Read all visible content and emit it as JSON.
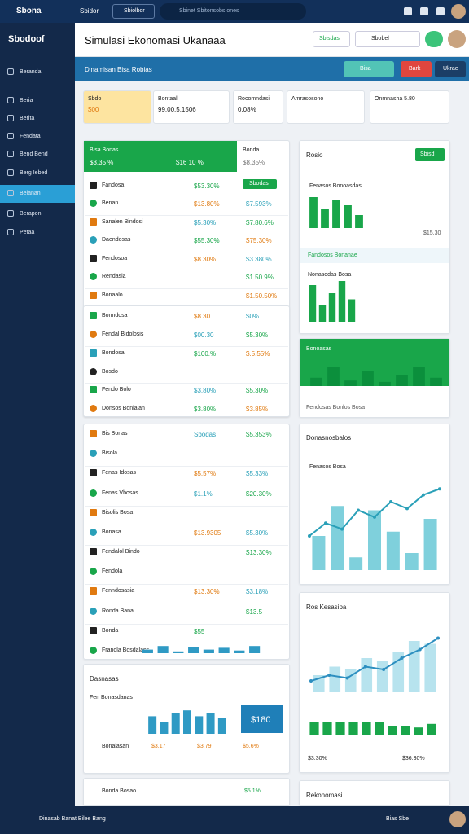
{
  "topbar": {
    "logo": "Sbona",
    "app": "Sbidor",
    "tab": "Sbiolbor",
    "search": "Sbinet Sbitonsobs ones"
  },
  "sidebar": {
    "brand": "Sbodoof",
    "items": [
      "Beranda",
      "Beria",
      "Berita",
      "Fendata",
      "Bend Bend",
      "Berg Iebed",
      "Belanan",
      "Berapon",
      "Petaa"
    ],
    "footer": "Dinasab Banat Bilee Bang"
  },
  "header": {
    "title": "Simulasi Ekonomasi Ukanaaa",
    "buttons": [
      "Sbisdas",
      "Sbobel"
    ]
  },
  "banner": {
    "title": "Dinamisan Bisa Robias",
    "buttons": [
      "Bisa",
      "Bark",
      "Ukrae"
    ]
  },
  "stats": [
    {
      "label": "Sbdo",
      "value": "$00"
    },
    {
      "label": "Bontaal",
      "value": "99.00.5.1506"
    },
    {
      "label": "Rocomndasi",
      "value": "0.08%"
    },
    {
      "label": "Amrasosono"
    },
    {
      "label": "Onmnasha 5.80"
    }
  ],
  "table": {
    "title": "Bisa Bonas",
    "values": [
      "$3.35 %",
      "$16 10 %"
    ],
    "side_title": "Bonda",
    "side_value": "$8.35%",
    "badge": "Sbodas",
    "sections": [
      [
        {
          "name": "Fandosa",
          "a": "$53.30%"
        },
        {
          "name": "Benan",
          "a": "$13.80%",
          "b": "$7.593%"
        },
        {
          "name": "Sanalen Bindosi",
          "a": "$5.30%",
          "b": "$7.80.6%"
        },
        {
          "name": "Daendosas",
          "a": "$55.30%",
          "b": "$75.30%"
        },
        {
          "name": "Fendosoa",
          "a": "$8.30%",
          "b": "$3.380%"
        },
        {
          "name": "Rendasia",
          "b": "$1.50.9%"
        },
        {
          "name": "Bonaalo",
          "b": "$1.50.50%"
        }
      ],
      [
        {
          "name": "Bonndosa",
          "a": "$8.30",
          "b": "$0%"
        },
        {
          "name": "Fendal Bidolosis",
          "a": "$00.30",
          "b": "$5.30%"
        },
        {
          "name": "Bondosa",
          "a": "$100.%",
          "b": "$.5.55%"
        },
        {
          "name": "Bosdo"
        },
        {
          "name": "Fendo Bolo",
          "a": "$3.80%",
          "b": "$5.30%"
        },
        {
          "name": "Donsos Bonlalan",
          "a": "$3.80%",
          "b": "$3.85%"
        }
      ],
      [
        {
          "name": "Bis Bonas",
          "a": "Sbodas",
          "b": "$5.353%"
        },
        {
          "name": "Bisola"
        },
        {
          "name": "Fenas Idosas",
          "a": "$5.57%",
          "b": "$5.33%"
        },
        {
          "name": "Fenas Vbosas",
          "a": "$1.1%",
          "b": "$20.30%"
        },
        {
          "name": "Bisolis Bosa"
        },
        {
          "name": "Bonasa",
          "a": "$13.9305",
          "b": "$5.30%"
        },
        {
          "name": "Fendalol Bindo",
          "b": "$13.30%"
        },
        {
          "name": "Fendola"
        },
        {
          "name": "Fenndosasia",
          "a": "$13.30%",
          "b": "$3.18%"
        },
        {
          "name": "Ronda Banal",
          "b": "$13.5"
        },
        {
          "name": "Bonda",
          "a": "$55"
        },
        {
          "name": "Franola Bosdalass"
        }
      ]
    ]
  },
  "panels": {
    "rosio": "Rosio",
    "rosio_button": "Sbisd",
    "rosio_sub": "Fenasos Bonoasdas",
    "rosio_note": "$15.30",
    "rosio_div": "Fandosos Bonanae",
    "rosio_sub2": "Nonasodas Bosa",
    "green": "Bonoasas",
    "green_note": "Fendosas Bonlos Bosa",
    "line": "Donasnosbalos",
    "line_sub": "Fenasos Bosa",
    "kes": "Ros Kesasipa",
    "kes_a": "$3.30%",
    "kes_b": "$36.30%",
    "rek": "Rekonomasi",
    "das": "Dasnasas",
    "das_sub": "Fen Bonasdanas",
    "das_box": "$180",
    "das_rows": [
      [
        "Bonalasan",
        "$3.17",
        "$3.79",
        "$5.6%"
      ],
      [
        "Bonda Bosao",
        "$5.1%"
      ]
    ],
    "footer_right": "Bias Sbe"
  },
  "charts": [
    {
      "values": [
        95,
        60,
        85,
        70,
        40
      ],
      "color": "#19a64a",
      "ylim": [
        0,
        100
      ]
    },
    {
      "values": [
        90,
        40,
        70,
        100,
        55
      ],
      "color": "#19a64a",
      "ylim": [
        0,
        100
      ]
    },
    {
      "values": [
        30,
        70,
        20,
        55,
        15,
        40,
        70,
        30
      ],
      "color": "#0b8f3c",
      "ylim": [
        0,
        100
      ]
    },
    {
      "values": [
        40,
        75,
        15,
        70,
        45,
        20,
        60
      ],
      "line": [
        40,
        55,
        48,
        70,
        62,
        80,
        72,
        88,
        95
      ],
      "color": "#7fd0dc",
      "line_color": "#2aa0b8",
      "ylim": [
        0,
        100
      ]
    },
    {
      "values": [
        30,
        45,
        40,
        60,
        55,
        70,
        90,
        85
      ],
      "line": [
        20,
        30,
        25,
        45,
        40,
        60,
        75,
        95
      ],
      "color": "#b7e3ee",
      "line_color": "#2d8fc0",
      "ylim": [
        0,
        100
      ]
    },
    {
      "values": [
        70,
        70,
        70,
        70,
        70,
        70,
        50,
        50,
        40,
        60
      ],
      "color": "#19a64a",
      "ylim": [
        0,
        100
      ]
    },
    {
      "values": [
        60,
        40,
        70,
        80,
        60,
        70,
        55
      ],
      "color": "#2f9ac4",
      "ylim": [
        0,
        100
      ]
    },
    {
      "values": [
        20,
        40,
        10,
        35,
        20,
        30,
        15,
        40
      ],
      "color": "#2f9ac4",
      "ylim": [
        0,
        100
      ]
    }
  ]
}
